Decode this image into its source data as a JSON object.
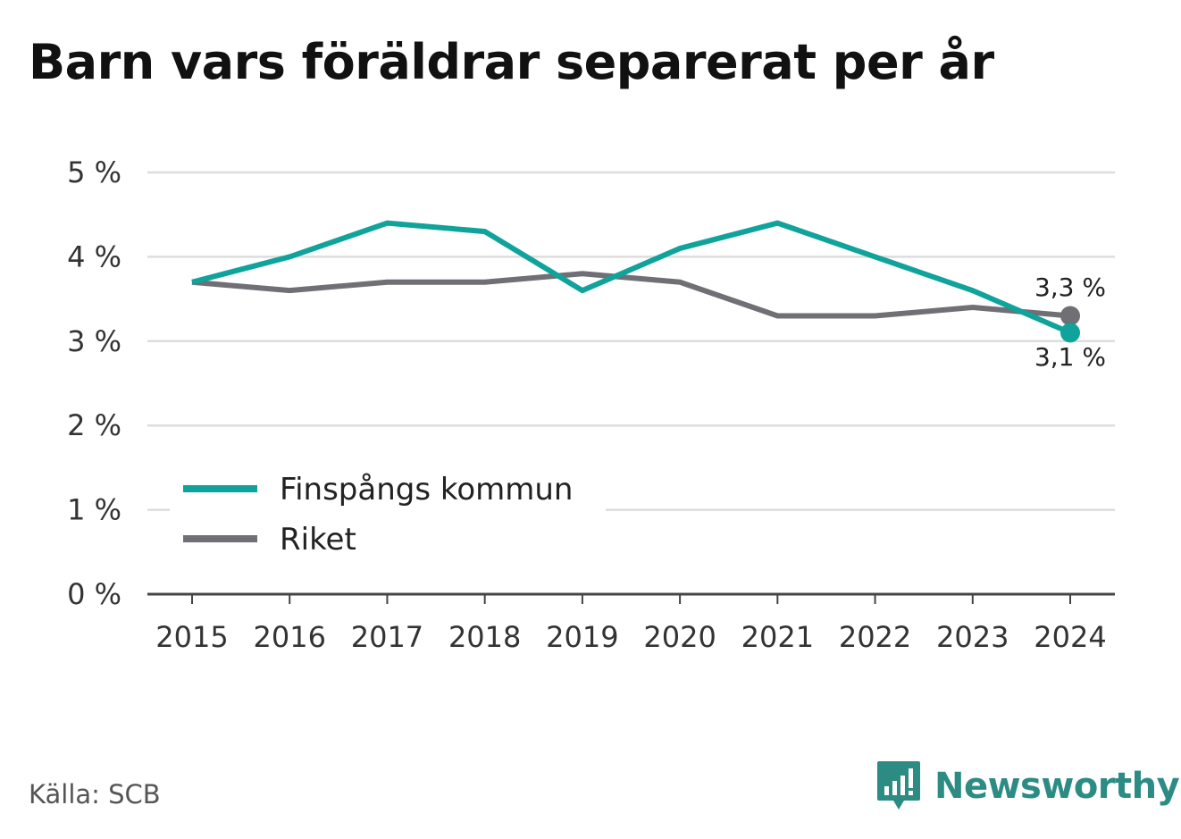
{
  "colors": {
    "finspang": "#0fa39b",
    "riket": "#6f6f75",
    "grid": "#dddddd",
    "axis": "#444444",
    "logo": "#2c8c84"
  },
  "source": "Källa: SCB",
  "logo": {
    "text": "Newsworthy",
    "icon": "bar-chart-speech-bubble-icon"
  },
  "chart_data": {
    "type": "line",
    "title": "Barn vars föräldrar separerat per år",
    "xlabel": "",
    "ylabel": "",
    "x": [
      "2015",
      "2016",
      "2017",
      "2018",
      "2019",
      "2020",
      "2021",
      "2022",
      "2023",
      "2024"
    ],
    "yticks": [
      "0 %",
      "1 %",
      "2 %",
      "3 %",
      "4 %",
      "5 %"
    ],
    "ylim": [
      0,
      5
    ],
    "grid": true,
    "legend": "lower-left",
    "series": [
      {
        "name": "Finspångs kommun",
        "color": "#0fa39b",
        "values": [
          3.7,
          4.0,
          4.4,
          4.3,
          3.6,
          4.1,
          4.4,
          4.0,
          3.6,
          3.1
        ],
        "end_label": "3,1 %"
      },
      {
        "name": "Riket",
        "color": "#6f6f75",
        "values": [
          3.7,
          3.6,
          3.7,
          3.7,
          3.8,
          3.7,
          3.3,
          3.3,
          3.4,
          3.3
        ],
        "end_label": "3,3 %"
      }
    ]
  }
}
